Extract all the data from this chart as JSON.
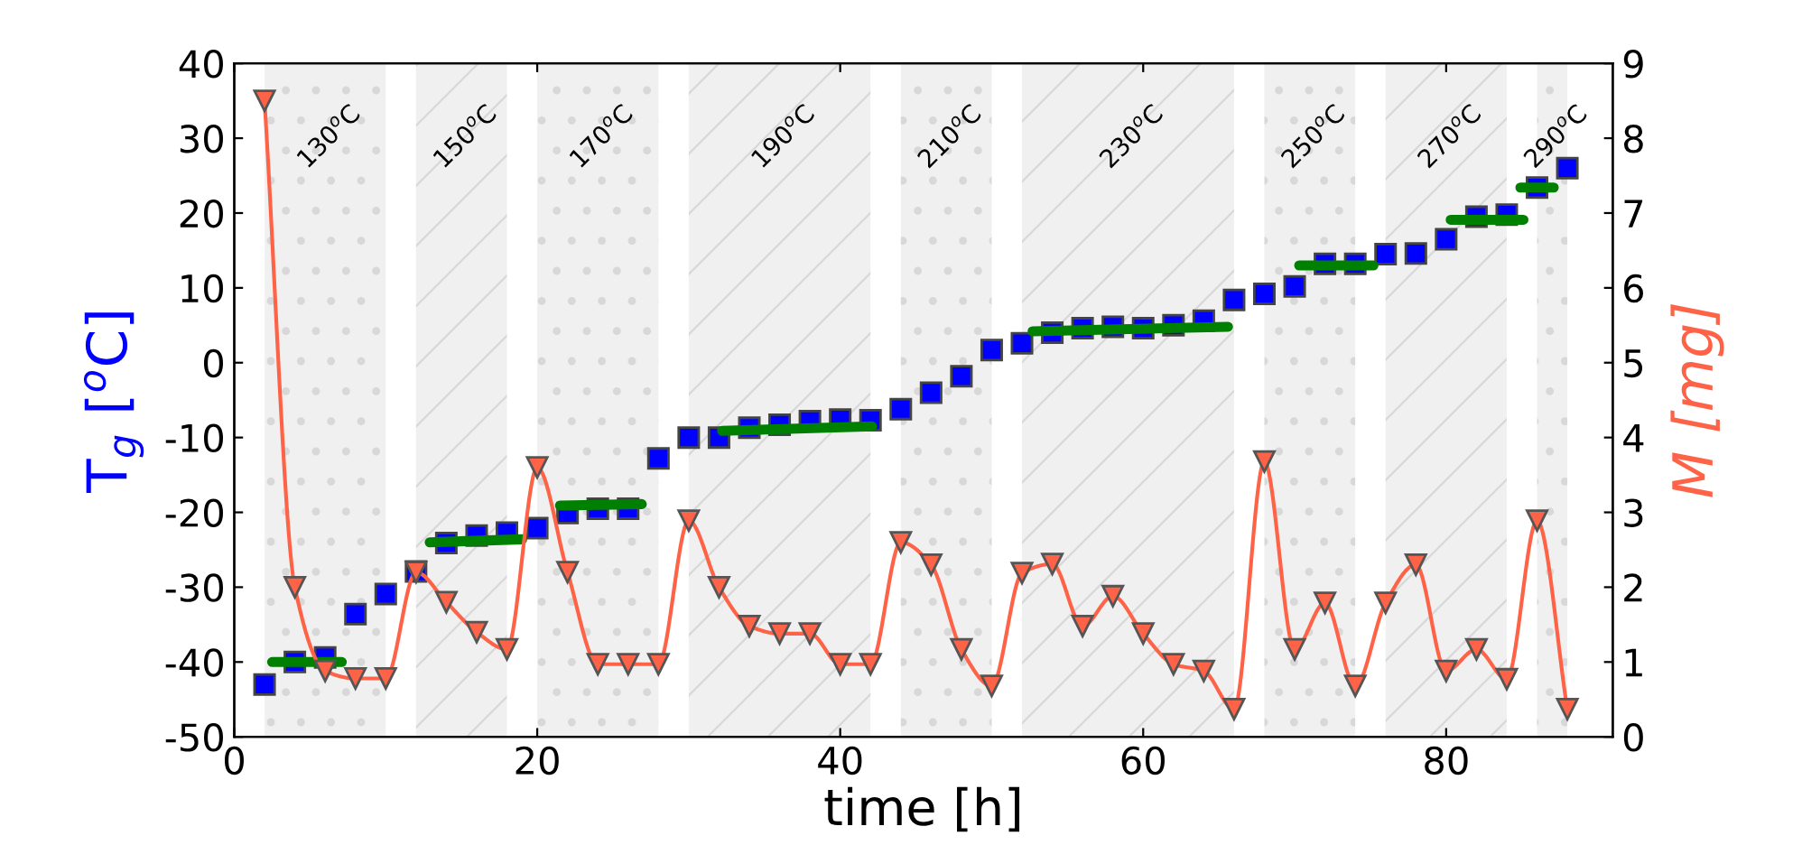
{
  "chart_data": {
    "type": "scatter",
    "xlabel": "time [h]",
    "ylabel": "T$_{g}$ [$^{o}$C]",
    "y2label": "M [mg]",
    "xlim": [
      0,
      91
    ],
    "xticks": [
      0,
      20,
      40,
      60,
      80
    ],
    "ylim": [
      -50,
      40
    ],
    "yticks": [
      -50,
      -40,
      -30,
      -20,
      -10,
      0,
      10,
      20,
      30,
      40
    ],
    "y2lim": [
      0,
      9
    ],
    "y2ticks": [
      0,
      1,
      2,
      3,
      4,
      5,
      6,
      7,
      8,
      9
    ],
    "grid": false,
    "legend": false,
    "bands": [
      {
        "axis": "x",
        "from": 2,
        "to": 10,
        "label": "130$^{o}$C",
        "color": "#f0f0f0"
      },
      {
        "axis": "x",
        "from": 12,
        "to": 18,
        "label": "150$^{o}$C",
        "color": "#f0f0f0"
      },
      {
        "axis": "x",
        "from": 20,
        "to": 28,
        "label": "170$^{o}$C",
        "color": "#f0f0f0"
      },
      {
        "axis": "x",
        "from": 30,
        "to": 42,
        "label": "190$^{o}$C",
        "color": "#f0f0f0"
      },
      {
        "axis": "x",
        "from": 44,
        "to": 50,
        "label": "210$^{o}$C",
        "color": "#f0f0f0"
      },
      {
        "axis": "x",
        "from": 52,
        "to": 66,
        "label": "230$^{o}$C",
        "color": "#f0f0f0"
      },
      {
        "axis": "x",
        "from": 68,
        "to": 74,
        "label": "250$^{o}$C",
        "color": "#f0f0f0"
      },
      {
        "axis": "x",
        "from": 76,
        "to": 84,
        "label": "270$^{o}$C",
        "color": "#f0f0f0"
      },
      {
        "axis": "x",
        "from": 86,
        "to": 88,
        "label": "290$^{o}$C",
        "color": "#f0f0f0"
      }
    ],
    "series": [
      {
        "type": "line",
        "color": "#008000",
        "marker": "none",
        "x": [
          2.5,
          7.1,
          10,
          12.9,
          19,
          20,
          21.5,
          26.9,
          29,
          32.2,
          42.1,
          47,
          52.7,
          65.6,
          68,
          70.3,
          75.2,
          78,
          80.3,
          85.1,
          85,
          84.9,
          87.1
        ],
        "values": [
          -40,
          -40,
          null,
          -24,
          -23.6,
          null,
          -19.1,
          -18.9,
          null,
          -9.1,
          -8.5,
          null,
          4.2,
          4.8,
          null,
          13,
          13,
          null,
          19.1,
          19.1,
          null,
          23.4,
          23.4
        ]
      },
      {
        "color": "#0000ff",
        "marker": "square",
        "x": [
          2,
          4,
          6,
          8,
          10,
          12,
          14,
          16,
          18,
          20,
          22,
          24,
          26,
          28,
          30,
          32,
          34,
          36,
          38,
          40,
          42,
          44,
          46,
          48,
          50,
          52,
          54,
          56,
          58,
          60,
          62,
          64,
          66,
          68,
          70,
          72,
          74,
          76,
          78,
          80,
          82,
          84,
          86,
          88
        ],
        "values": [
          -43,
          -40,
          -39.4,
          -33.6,
          -30.9,
          -27.9,
          -24.1,
          -23.1,
          -22.7,
          -22.1,
          -20.1,
          -19.5,
          -19.5,
          -12.8,
          -10,
          -10,
          -8.7,
          -8.3,
          -7.8,
          -7.6,
          -7.7,
          -6.2,
          -4,
          -1.8,
          1.7,
          2.6,
          4,
          4.6,
          4.8,
          4.6,
          5,
          5.6,
          8.4,
          9.2,
          10.2,
          13.2,
          13.2,
          14.5,
          14.6,
          16.5,
          19.5,
          19.8,
          23.4,
          26
        ]
      },
      {
        "type": "line",
        "axis": "y2",
        "color": "#ff6347",
        "marker": "triangle",
        "x": [
          2,
          4,
          6,
          8,
          10,
          12,
          14,
          16,
          18,
          20,
          22,
          24,
          26,
          28,
          30,
          32,
          34,
          36,
          38,
          40,
          42,
          44,
          46,
          48,
          50,
          52,
          54,
          56,
          58,
          60,
          62,
          64,
          66,
          68,
          70,
          72,
          74,
          76,
          78,
          80,
          82,
          84,
          86,
          88
        ],
        "values": [
          8.5,
          2.0,
          0.88,
          0.78,
          0.78,
          2.2,
          1.8,
          1.4,
          1.17,
          3.6,
          2.2,
          0.97,
          0.97,
          0.97,
          2.89,
          2.0,
          1.48,
          1.38,
          1.38,
          0.97,
          0.97,
          2.6,
          2.3,
          1.17,
          0.68,
          2.19,
          2.31,
          1.48,
          1.88,
          1.38,
          0.97,
          0.88,
          0.37,
          3.68,
          1.17,
          1.79,
          0.68,
          1.79,
          2.3,
          0.88,
          1.17,
          0.77,
          2.89,
          0.37
        ]
      }
    ]
  }
}
